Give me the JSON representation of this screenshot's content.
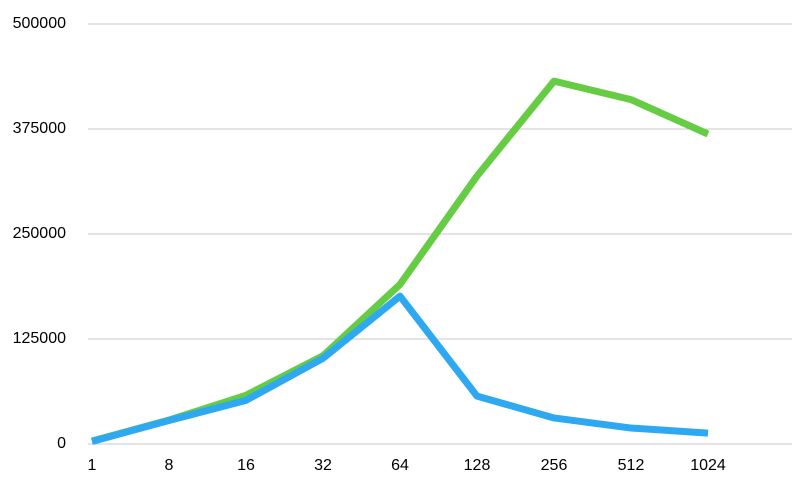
{
  "chart_data": {
    "type": "line",
    "categories": [
      "1",
      "8",
      "16",
      "32",
      "64",
      "128",
      "256",
      "512",
      "1024"
    ],
    "series": [
      {
        "color": "#66cc44",
        "values": [
          3500,
          28500,
          58000,
          105000,
          190000,
          319000,
          432000,
          410000,
          369000
        ]
      },
      {
        "color": "#2ea8f0",
        "values": [
          3000,
          28000,
          52000,
          102000,
          176000,
          57000,
          31000,
          19000,
          13000
        ]
      }
    ],
    "ylim": [
      0,
      500000
    ],
    "yticks": [
      0,
      125000,
      250000,
      375000,
      500000
    ],
    "grid": true
  }
}
